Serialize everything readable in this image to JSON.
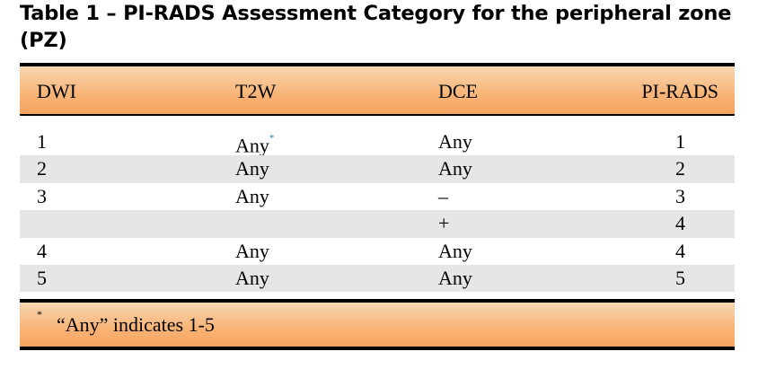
{
  "caption": "Table 1 – PI-RADS Assessment Category for the peripheral zone (PZ)",
  "headers": [
    "DWI",
    "T2W",
    "DCE",
    "PI-RADS"
  ],
  "rows": [
    {
      "dwi": "1",
      "t2w": "Any",
      "t2w_mark": "*",
      "dce": "Any",
      "pirads": "1",
      "shaded": false
    },
    {
      "dwi": "2",
      "t2w": "Any",
      "t2w_mark": "",
      "dce": "Any",
      "pirads": "2",
      "shaded": true
    },
    {
      "dwi": "3",
      "t2w": "Any",
      "t2w_mark": "",
      "dce": "–",
      "pirads": "3",
      "shaded": false
    },
    {
      "dwi": "",
      "t2w": "",
      "t2w_mark": "",
      "dce": "+",
      "pirads": "4",
      "shaded": true
    },
    {
      "dwi": "4",
      "t2w": "Any",
      "t2w_mark": "",
      "dce": "Any",
      "pirads": "4",
      "shaded": false
    },
    {
      "dwi": "5",
      "t2w": "Any",
      "t2w_mark": "",
      "dce": "Any",
      "pirads": "5",
      "shaded": true
    }
  ],
  "footnote": {
    "mark": "*",
    "text": "“Any” indicates 1-5"
  },
  "colors": {
    "header_band": "#f8b67a",
    "row_shade": "#e6e6e6",
    "footnote_mark": "#2a6fb5"
  }
}
